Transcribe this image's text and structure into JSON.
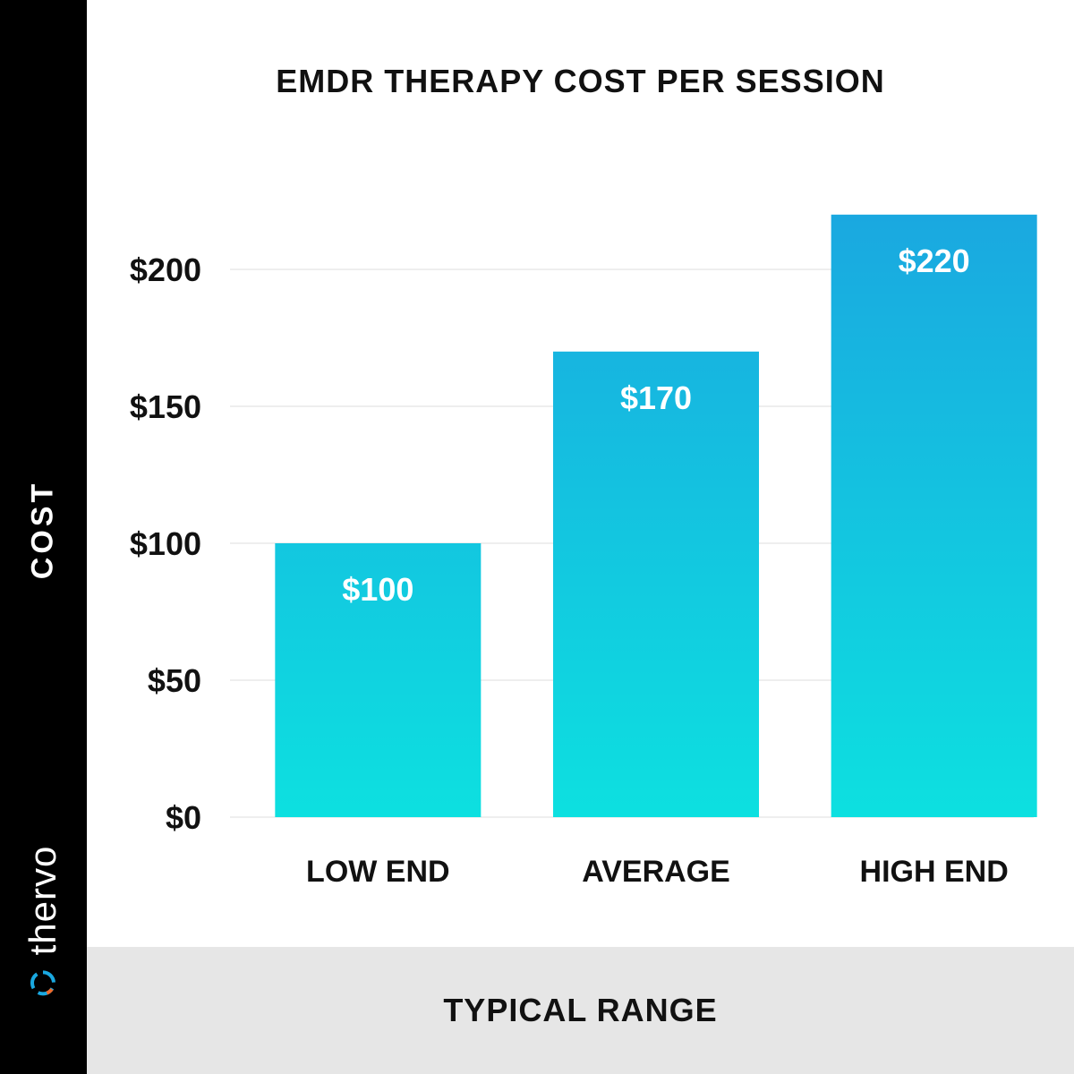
{
  "brand": {
    "name": "thervo",
    "logo_icon": "thervo-ring-logo-icon"
  },
  "colors": {
    "bar_top": "#1aa8e0",
    "bar_bottom": "#0de0e0",
    "sidebar": "#000000",
    "footer": "#e6e6e6",
    "grid": "#eeeeee"
  },
  "chart_data": {
    "type": "bar",
    "title": "EMDR THERAPY COST PER SESSION",
    "xlabel": "TYPICAL RANGE",
    "ylabel": "COST",
    "categories": [
      "LOW END",
      "AVERAGE",
      "HIGH END"
    ],
    "values": [
      100,
      170,
      220
    ],
    "value_labels": [
      "$100",
      "$170",
      "$220"
    ],
    "yticks": [
      0,
      50,
      100,
      150,
      200
    ],
    "ytick_labels": [
      "$0",
      "$50",
      "$100",
      "$150",
      "$200"
    ],
    "ylim": [
      0,
      220
    ],
    "grid": true,
    "legend": "none"
  }
}
